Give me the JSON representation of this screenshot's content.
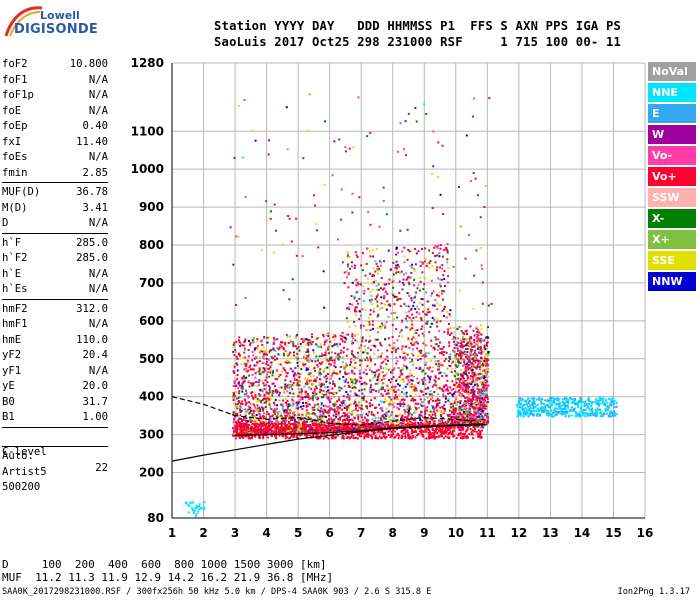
{
  "logo": {
    "line1": "Lowell",
    "line2": "DIGISONDE"
  },
  "header": {
    "line1": "Station YYYY DAY   DDD HHMMSS P1  FFS S AXN PPS IGA PS",
    "line2": "SaoLuis 2017 Oct25 298 231000 RSF     1 715 100 00- 11"
  },
  "params_group1": [
    {
      "name": "foF2",
      "value": "10.800"
    },
    {
      "name": "foF1",
      "value": "N/A"
    },
    {
      "name": "foF1p",
      "value": "N/A"
    },
    {
      "name": "foE",
      "value": "N/A"
    },
    {
      "name": "foEp",
      "value": "0.40"
    },
    {
      "name": "fxI",
      "value": "11.40"
    },
    {
      "name": "foEs",
      "value": "N/A"
    },
    {
      "name": "fmin",
      "value": "2.85"
    }
  ],
  "params_group2": [
    {
      "name": "MUF(D)",
      "value": "36.78"
    },
    {
      "name": "M(D)",
      "value": "3.41"
    },
    {
      "name": "D",
      "value": "N/A"
    }
  ],
  "params_group3": [
    {
      "name": "h`F",
      "value": "285.0"
    },
    {
      "name": "h`F2",
      "value": "285.0"
    },
    {
      "name": "h`E",
      "value": "N/A"
    },
    {
      "name": "h`Es",
      "value": "N/A"
    }
  ],
  "params_group4": [
    {
      "name": "hmF2",
      "value": "312.0"
    },
    {
      "name": "hmF1",
      "value": "N/A"
    },
    {
      "name": "hmE",
      "value": "110.0"
    },
    {
      "name": "yF2",
      "value": "20.4"
    },
    {
      "name": "yF1",
      "value": "N/A"
    },
    {
      "name": "yE",
      "value": "20.0"
    },
    {
      "name": "B0",
      "value": "31.7"
    },
    {
      "name": "B1",
      "value": "1.00"
    }
  ],
  "clevel": {
    "name": "C-level",
    "value": "22"
  },
  "auto_lines": [
    "Auto:",
    "Artist5",
    "500200"
  ],
  "legend": [
    {
      "label": "NoVal",
      "color": "#a0a0a0"
    },
    {
      "label": "NNE",
      "color": "#00e5ff"
    },
    {
      "label": "E",
      "color": "#33a8f0"
    },
    {
      "label": "W",
      "color": "#a000a0"
    },
    {
      "label": "Vo-",
      "color": "#ff3ca8"
    },
    {
      "label": "Vo+",
      "color": "#ff0030"
    },
    {
      "label": "SSW",
      "color": "#ffb0b0"
    },
    {
      "label": "X-",
      "color": "#008000"
    },
    {
      "label": "X+",
      "color": "#80c040"
    },
    {
      "label": "SSE",
      "color": "#e0e000"
    },
    {
      "label": "NNW",
      "color": "#0000d0"
    }
  ],
  "chart_data": {
    "type": "scatter",
    "xlim": [
      1,
      16
    ],
    "ylim": [
      80,
      1280
    ],
    "x_ticks": [
      "1",
      "2",
      "3",
      "4",
      "5",
      "6",
      "7",
      "8",
      "9",
      "10",
      "11",
      "12",
      "13",
      "14",
      "15",
      "16"
    ],
    "y_ticks": [
      "80",
      "200",
      "300",
      "400",
      "500",
      "600",
      "700",
      "800",
      "900",
      "1000",
      "1100",
      "1280"
    ],
    "y_tick_values": [
      80,
      200,
      300,
      400,
      500,
      600,
      700,
      800,
      900,
      1000,
      1100,
      1280
    ],
    "grid": true,
    "traces": [
      {
        "name": "bottomside profile",
        "style": "solid",
        "x": [
          1,
          2,
          3,
          4,
          5,
          6,
          7,
          8,
          9,
          10,
          11
        ],
        "y": [
          230,
          246,
          260,
          274,
          288,
          298,
          308,
          316,
          320,
          324,
          326
        ]
      },
      {
        "name": "F2 trace",
        "style": "solid",
        "x": [
          3.0,
          4.0,
          5.0,
          6.0,
          7.0,
          8.0,
          9.0,
          10.0,
          10.8
        ],
        "y": [
          298,
          300,
          302,
          305,
          310,
          318,
          322,
          325,
          328
        ]
      },
      {
        "name": "upper trace",
        "style": "dashed",
        "x": [
          1,
          2,
          3,
          4,
          5,
          6,
          7,
          8,
          9,
          10,
          10.8
        ],
        "y": [
          400,
          380,
          350,
          340,
          345,
          330,
          325,
          335,
          345,
          340,
          335
        ]
      }
    ]
  },
  "bottom": {
    "d_line": "D     100  200  400  600  800 1000 1500 3000 [km]",
    "muf_line": "MUF  11.2 11.3 11.9 12.9 14.2 16.2 21.9 36.8 [MHz]",
    "footer": "SAA0K_2017298231000.RSF / 300fx256h 50 kHz 5.0 km / DPS-4 SAA0K 903 / 2.6 S 315.8 E",
    "version": "Ion2Png 1.3.17"
  }
}
